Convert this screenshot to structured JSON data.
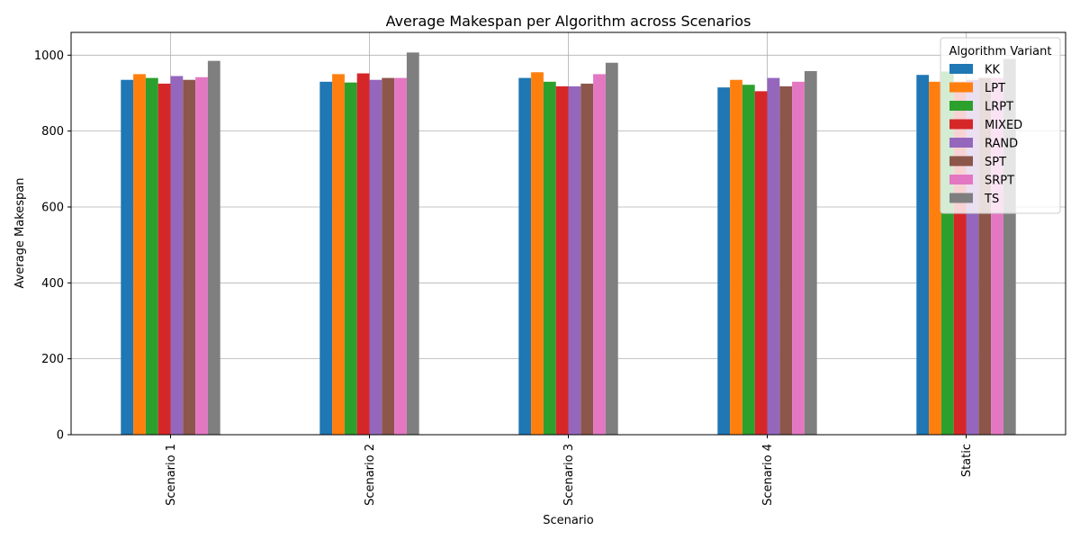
{
  "chart_data": {
    "type": "bar",
    "title": "Average Makespan per Algorithm across Scenarios",
    "xlabel": "Scenario",
    "ylabel": "Average Makespan",
    "categories": [
      "Scenario 1",
      "Scenario 2",
      "Scenario 3",
      "Scenario 4",
      "Static"
    ],
    "ylim": [
      0,
      1060
    ],
    "yticks": [
      0,
      200,
      400,
      600,
      800,
      1000
    ],
    "grid": true,
    "legend": {
      "title": "Algorithm Variant",
      "placement": "top-right"
    },
    "series": [
      {
        "name": "KK",
        "color": "#1f77b4",
        "values": [
          935,
          930,
          940,
          915,
          948
        ]
      },
      {
        "name": "LPT",
        "color": "#ff7f0e",
        "values": [
          950,
          950,
          955,
          935,
          930
        ]
      },
      {
        "name": "LRPT",
        "color": "#2ca02c",
        "values": [
          940,
          928,
          930,
          922,
          957
        ]
      },
      {
        "name": "MIXED",
        "color": "#d62728",
        "values": [
          925,
          952,
          918,
          905,
          930
        ]
      },
      {
        "name": "RAND",
        "color": "#9467bd",
        "values": [
          945,
          935,
          918,
          940,
          935
        ]
      },
      {
        "name": "SPT",
        "color": "#8c564b",
        "values": [
          935,
          940,
          925,
          918,
          940
        ]
      },
      {
        "name": "SRPT",
        "color": "#e377c2",
        "values": [
          942,
          940,
          950,
          930,
          940
        ]
      },
      {
        "name": "TS",
        "color": "#7f7f7f",
        "values": [
          985,
          1007,
          980,
          958,
          990
        ]
      }
    ]
  }
}
